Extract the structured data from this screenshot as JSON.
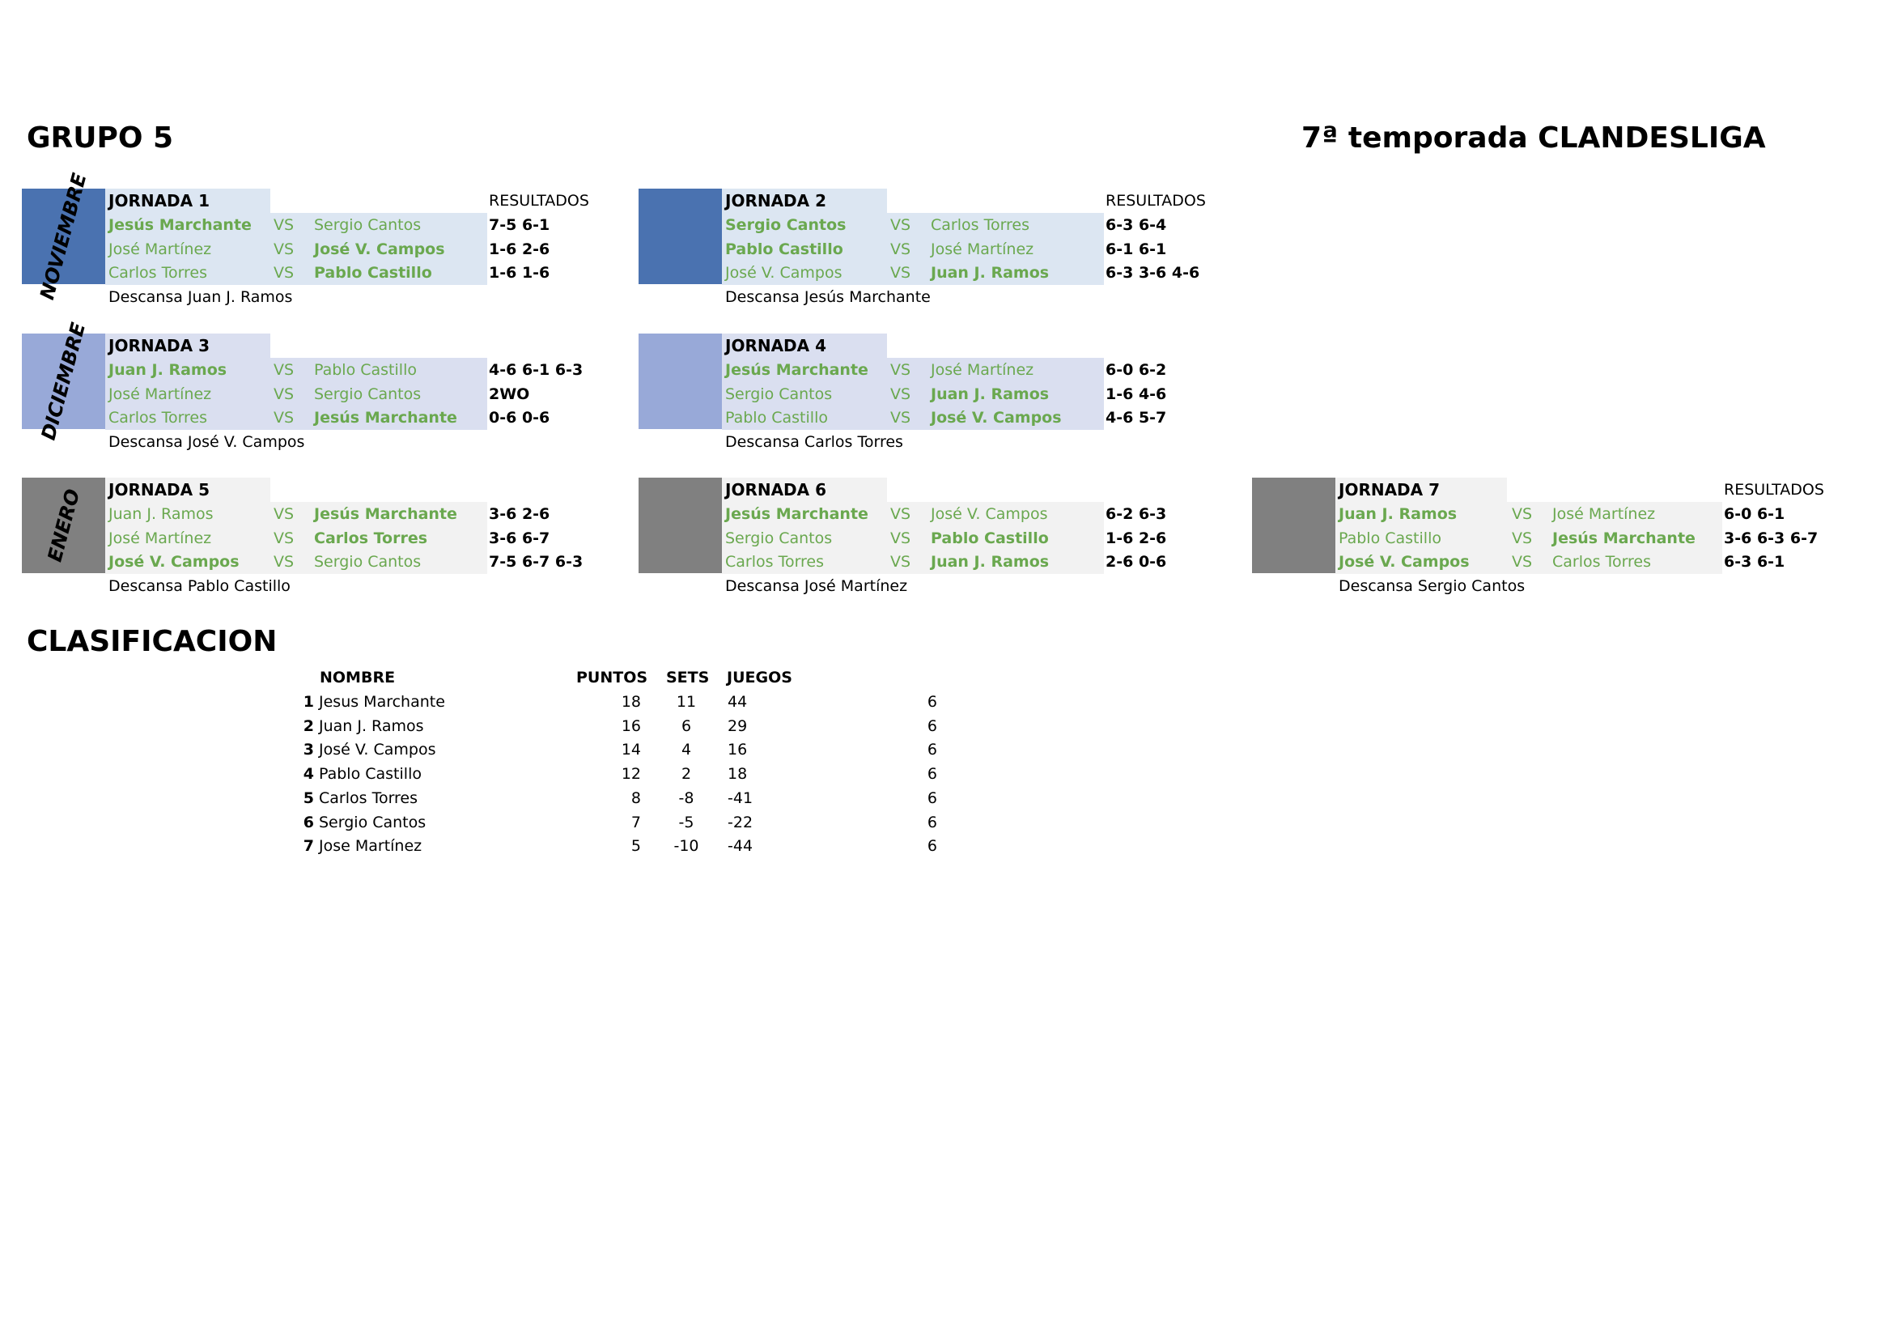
{
  "header": {
    "group": "GRUPO 5",
    "season": "7ª temporada CLANDESLIGA"
  },
  "results_label": "RESULTADOS",
  "vs_label": "VS",
  "months": [
    {
      "name": "NOVIEMBRE",
      "color": "#4a72b0"
    },
    {
      "name": "DICIEMBRE",
      "color": "#98a9d8"
    },
    {
      "name": "ENERO",
      "color": "#808080"
    }
  ],
  "jornadas": [
    {
      "title": "JORNADA 1",
      "rest": "Descansa Juan J. Ramos",
      "matches": [
        {
          "p1": "Jesús Marchante",
          "p2": "Sergio Cantos",
          "winner": 1,
          "score": "7-5 6-1"
        },
        {
          "p1": "José Martínez",
          "p2": "José V. Campos",
          "winner": 2,
          "score": "1-6 2-6"
        },
        {
          "p1": "Carlos Torres",
          "p2": "Pablo Castillo",
          "winner": 2,
          "score": "1-6 1-6"
        }
      ]
    },
    {
      "title": "JORNADA 2",
      "rest": "Descansa Jesús Marchante",
      "matches": [
        {
          "p1": "Sergio Cantos",
          "p2": "Carlos Torres",
          "winner": 1,
          "score": "6-3 6-4"
        },
        {
          "p1": "Pablo Castillo",
          "p2": "José Martínez",
          "winner": 1,
          "score": "6-1 6-1"
        },
        {
          "p1": "José V. Campos",
          "p2": "Juan J. Ramos",
          "winner": 2,
          "score": "6-3 3-6 4-6"
        }
      ]
    },
    {
      "title": "JORNADA 3",
      "rest": "Descansa José V. Campos",
      "matches": [
        {
          "p1": "Juan J. Ramos",
          "p2": "Pablo Castillo",
          "winner": 1,
          "score": "4-6 6-1 6-3"
        },
        {
          "p1": "José Martínez",
          "p2": "Sergio Cantos",
          "winner": 0,
          "score": "2WO"
        },
        {
          "p1": "Carlos Torres",
          "p2": "Jesús Marchante",
          "winner": 2,
          "score": "0-6 0-6"
        }
      ]
    },
    {
      "title": "JORNADA 4",
      "rest": "Descansa Carlos Torres",
      "matches": [
        {
          "p1": "Jesús Marchante",
          "p2": "José Martínez",
          "winner": 1,
          "score": "6-0 6-2"
        },
        {
          "p1": "Sergio Cantos",
          "p2": "Juan J. Ramos",
          "winner": 2,
          "score": "1-6 4-6"
        },
        {
          "p1": "Pablo Castillo",
          "p2": "José V. Campos",
          "winner": 2,
          "score": "4-6 5-7"
        }
      ]
    },
    {
      "title": "JORNADA 5",
      "rest": "Descansa Pablo Castillo",
      "matches": [
        {
          "p1": "Juan J. Ramos",
          "p2": "Jesús Marchante",
          "winner": 2,
          "score": "3-6 2-6"
        },
        {
          "p1": "José Martínez",
          "p2": "Carlos Torres",
          "winner": 2,
          "score": "3-6 6-7"
        },
        {
          "p1": "José V. Campos",
          "p2": "Sergio Cantos",
          "winner": 1,
          "score": "7-5 6-7 6-3"
        }
      ]
    },
    {
      "title": "JORNADA 6",
      "rest": "Descansa José Martínez",
      "matches": [
        {
          "p1": "Jesús Marchante",
          "p2": "José V. Campos",
          "winner": 1,
          "score": "6-2 6-3"
        },
        {
          "p1": "Sergio Cantos",
          "p2": "Pablo Castillo",
          "winner": 2,
          "score": "1-6 2-6"
        },
        {
          "p1": "Carlos Torres",
          "p2": "Juan J. Ramos",
          "winner": 2,
          "score": "2-6 0-6"
        }
      ]
    },
    {
      "title": "JORNADA 7",
      "rest": "Descansa Sergio Cantos",
      "matches": [
        {
          "p1": "Juan J. Ramos",
          "p2": "José Martínez",
          "winner": 1,
          "score": "6-0 6-1"
        },
        {
          "p1": "Pablo Castillo",
          "p2": "Jesús Marchante",
          "winner": 2,
          "score": "3-6 6-3 6-7"
        },
        {
          "p1": "José V. Campos",
          "p2": "Carlos Torres",
          "winner": 1,
          "score": "6-3 6-1"
        }
      ]
    }
  ],
  "clasificacion": {
    "title": "CLASIFICACION",
    "headers": {
      "nombre": "NOMBRE",
      "puntos": "PUNTOS",
      "sets": "SETS",
      "juegos": "JUEGOS"
    },
    "rows": [
      {
        "pos": "1",
        "name": "Jesus Marchante",
        "puntos": "18",
        "sets": "11",
        "juegos": "44",
        "extra": "6"
      },
      {
        "pos": "2",
        "name": "Juan J. Ramos",
        "puntos": "16",
        "sets": "6",
        "juegos": "29",
        "extra": "6"
      },
      {
        "pos": "3",
        "name": "José V. Campos",
        "puntos": "14",
        "sets": "4",
        "juegos": "16",
        "extra": "6"
      },
      {
        "pos": "4",
        "name": "Pablo Castillo",
        "puntos": "12",
        "sets": "2",
        "juegos": "18",
        "extra": "6"
      },
      {
        "pos": "5",
        "name": "Carlos Torres",
        "puntos": "8",
        "sets": "-8",
        "juegos": "-41",
        "extra": "6"
      },
      {
        "pos": "6",
        "name": "Sergio Cantos",
        "puntos": "7",
        "sets": "-5",
        "juegos": "-22",
        "extra": "6"
      },
      {
        "pos": "7",
        "name": "Jose Martínez",
        "puntos": "5",
        "sets": "-10",
        "juegos": "-44",
        "extra": "6"
      }
    ]
  }
}
